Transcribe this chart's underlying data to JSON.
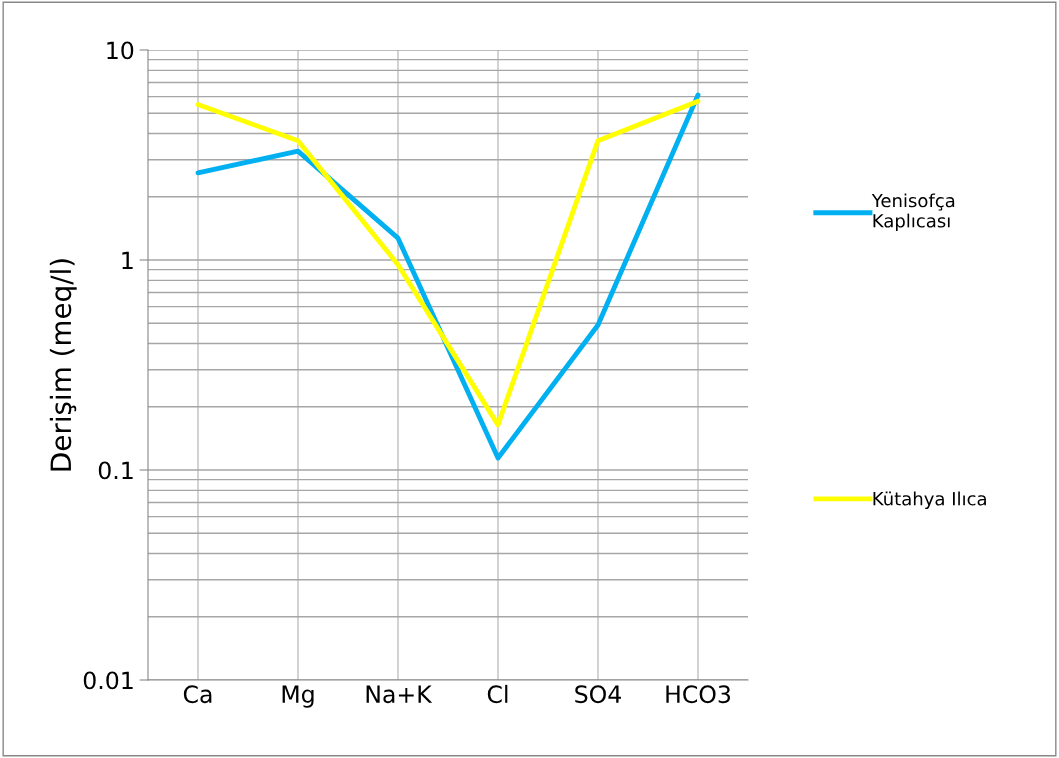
{
  "chart_data": {
    "type": "line",
    "ylabel": "Derişim (meq/l)",
    "categories": [
      "Ca",
      "Mg",
      "Na+K",
      "Cl",
      "SO4",
      "HCO3"
    ],
    "series": [
      {
        "name": "Yenisofça Kaplıcası",
        "color": "#00b0f0",
        "values": [
          2.6,
          3.3,
          1.27,
          0.114,
          0.49,
          6.1
        ]
      },
      {
        "name": "Kütahya Ilıca",
        "color": "#ffff00",
        "values": [
          5.5,
          3.7,
          0.95,
          0.164,
          3.7,
          5.7
        ]
      }
    ],
    "log": "y",
    "ylim": [
      0.01,
      10
    ],
    "yticks": [
      0.01,
      0.1,
      1,
      10
    ],
    "grid": true,
    "legend": "right",
    "marker": "none",
    "line_style": "solid"
  }
}
